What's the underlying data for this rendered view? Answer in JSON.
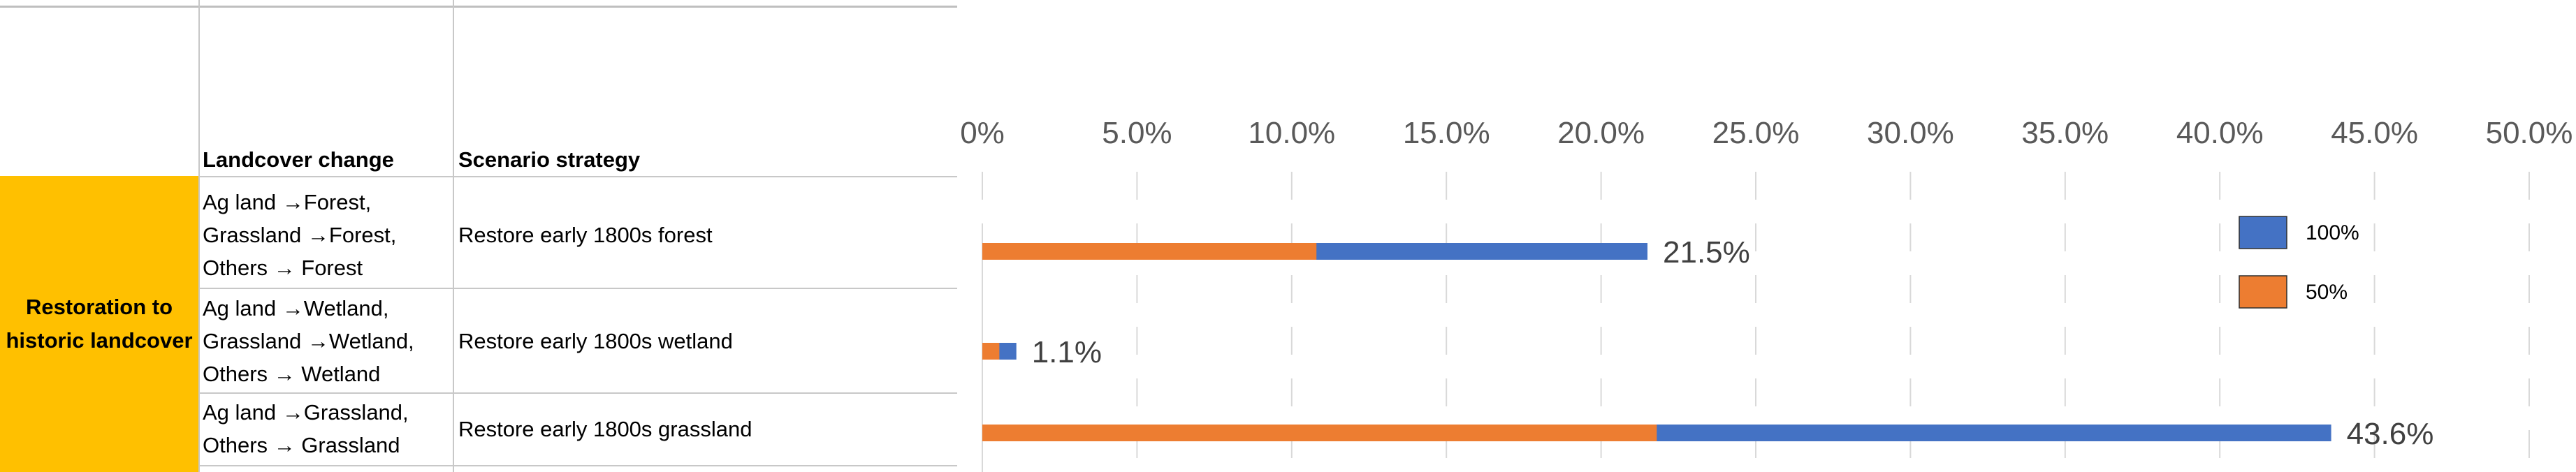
{
  "table": {
    "headers": {
      "landcover_change": "Landcover change",
      "scenario_strategy": "Scenario strategy"
    },
    "category": "Restoration to historic landcover",
    "rows": [
      {
        "landcover_change": [
          "Ag land →Forest,",
          "Grassland →Forest,",
          "Others → Forest"
        ],
        "scenario_strategy": "Restore early 1800s forest"
      },
      {
        "landcover_change": [
          "Ag land →Wetland,",
          "Grassland →Wetland,",
          "Others → Wetland"
        ],
        "scenario_strategy": "Restore early 1800s wetland"
      },
      {
        "landcover_change": [
          "Ag land →Grassland,",
          "Others → Grassland"
        ],
        "scenario_strategy": "Restore early 1800s grassland"
      }
    ]
  },
  "chart_data": {
    "type": "bar",
    "orientation": "horizontal",
    "categories": [
      "Restore early 1800s forest",
      "Restore early 1800s wetland",
      "Restore early 1800s grassland"
    ],
    "series": [
      {
        "name": "100%",
        "values": [
          21.5,
          1.1,
          43.6
        ],
        "color": "#4472c4"
      },
      {
        "name": "50%",
        "values": [
          10.8,
          0.55,
          21.8
        ],
        "color": "#ed7d31"
      }
    ],
    "data_labels": [
      "21.5%",
      "1.1%",
      "43.6%"
    ],
    "xlim": [
      0,
      50
    ],
    "ticks": [
      "0%",
      "5.0%",
      "10.0%",
      "15.0%",
      "20.0%",
      "25.0%",
      "30.0%",
      "35.0%",
      "40.0%",
      "45.0%",
      "50.0%"
    ],
    "tick_position": "top",
    "grid": "vertical-dashed",
    "legend": {
      "position": "right",
      "entries": [
        "100%",
        "50%"
      ]
    },
    "title": "",
    "xlabel": "",
    "ylabel": ""
  }
}
